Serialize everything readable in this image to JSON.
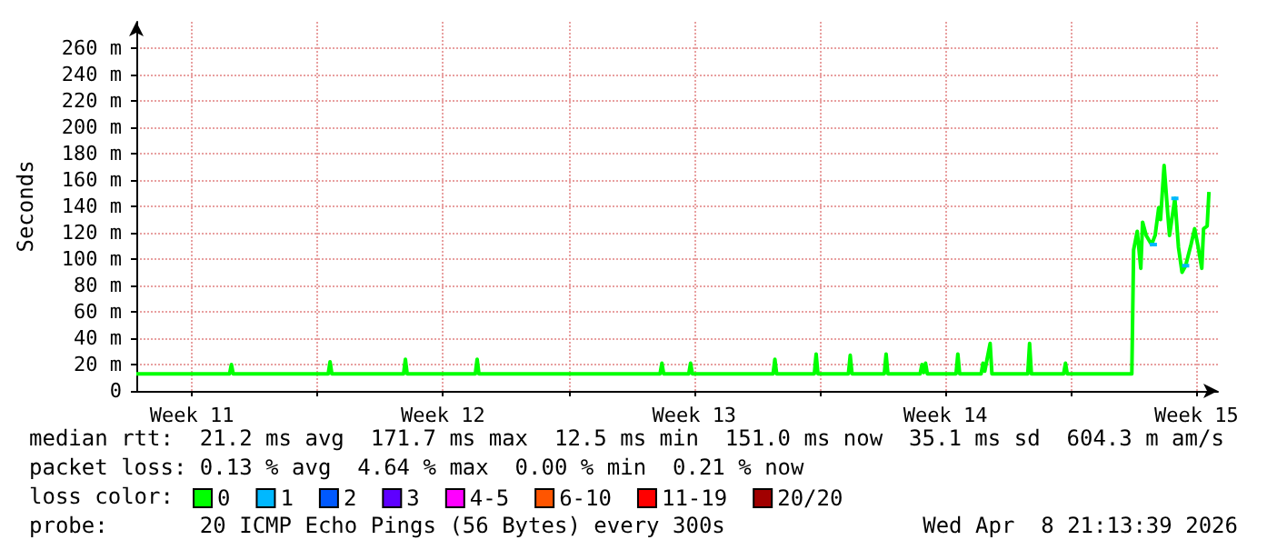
{
  "chart_data": {
    "type": "line",
    "ylabel": "Seconds",
    "xlim": [
      "2026-03-09T22:48",
      "2026-04-09T02:24"
    ],
    "xticks": [
      {
        "value": "2026-03-11T12:00",
        "label": "Week 11"
      },
      {
        "value": "2026-03-15T00:00",
        "label": null
      },
      {
        "value": "2026-03-18T12:00",
        "label": "Week 12"
      },
      {
        "value": "2026-03-22T00:00",
        "label": null
      },
      {
        "value": "2026-03-25T12:00",
        "label": "Week 13"
      },
      {
        "value": "2026-03-29T00:00",
        "label": null
      },
      {
        "value": "2026-04-01T12:00",
        "label": "Week 14"
      },
      {
        "value": "2026-04-05T00:00",
        "label": null
      },
      {
        "value": "2026-04-08T12:00",
        "label": "Week 15"
      }
    ],
    "ylim": [
      0,
      280
    ],
    "yticks": [
      0,
      {
        "value": 20,
        "label": "20 m"
      },
      {
        "value": 40,
        "label": "40 m"
      },
      {
        "value": 60,
        "label": "60 m"
      },
      {
        "value": 80,
        "label": "80 m"
      },
      {
        "value": 100,
        "label": "100 m"
      },
      {
        "value": 120,
        "label": "120 m"
      },
      {
        "value": 140,
        "label": "140 m"
      },
      {
        "value": 160,
        "label": "160 m"
      },
      {
        "value": 180,
        "label": "180 m"
      },
      {
        "value": 200,
        "label": "200 m"
      },
      {
        "value": 220,
        "label": "220 m"
      },
      {
        "value": 240,
        "label": "240 m"
      },
      {
        "value": 260,
        "label": "260 m"
      }
    ],
    "grid": true,
    "legend": "bottom",
    "marker": "none",
    "line_style": "solid",
    "series": [
      {
        "name": "0",
        "color": "#00ff00",
        "x": [
          "2026-03-09T22:48",
          "2026-03-12T13:12",
          "2026-03-12T14:24",
          "2026-03-12T15:36",
          "2026-03-15T07:12",
          "2026-03-15T08:24",
          "2026-03-15T09:36",
          "2026-03-17T09:36",
          "2026-03-17T10:48",
          "2026-03-17T12:00",
          "2026-03-19T09:36",
          "2026-03-19T10:48",
          "2026-03-19T12:00",
          "2026-03-24T13:12",
          "2026-03-24T14:24",
          "2026-03-24T15:36",
          "2026-03-25T08:24",
          "2026-03-25T09:36",
          "2026-03-25T10:48",
          "2026-03-27T16:48",
          "2026-03-27T18:00",
          "2026-03-27T19:12",
          "2026-03-28T20:24",
          "2026-03-28T21:36",
          "2026-03-28T22:48",
          "2026-03-29T19:12",
          "2026-03-29T20:24",
          "2026-03-29T21:36",
          "2026-03-30T19:12",
          "2026-03-30T20:24",
          "2026-03-30T21:36",
          "2026-03-31T19:12",
          "2026-03-31T20:24",
          "2026-03-31T21:36",
          "2026-03-31T22:48",
          "2026-04-01T00:00",
          "2026-04-01T19:12",
          "2026-04-01T20:24",
          "2026-04-01T21:36",
          "2026-04-02T12:00",
          "2026-04-02T13:12",
          "2026-04-02T14:24",
          "2026-04-02T18:00",
          "2026-04-02T19:12",
          "2026-04-03T19:12",
          "2026-04-03T20:24",
          "2026-04-03T21:36",
          "2026-04-04T19:12",
          "2026-04-04T20:24",
          "2026-04-04T21:36",
          "2026-04-06T16:48",
          "2026-04-06T18:00",
          "2026-04-06T20:24",
          "2026-04-06T22:48",
          "2026-04-07T00:00",
          "2026-04-07T02:24",
          "2026-04-07T06:00",
          "2026-04-07T08:24",
          "2026-04-07T10:48",
          "2026-04-07T12:00",
          "2026-04-07T14:24",
          "2026-04-07T16:48",
          "2026-04-07T18:00",
          "2026-04-07T21:36",
          "2026-04-08T00:00",
          "2026-04-08T02:24",
          "2026-04-08T04:48",
          "2026-04-08T08:24",
          "2026-04-08T10:48",
          "2026-04-08T13:12",
          "2026-04-08T15:36",
          "2026-04-08T16:48",
          "2026-04-08T19:12",
          "2026-04-08T20:24"
        ],
        "values": [
          13,
          13,
          20,
          13,
          13,
          22,
          13,
          13,
          24,
          13,
          13,
          24,
          13,
          13,
          21,
          13,
          13,
          21,
          13,
          13,
          24,
          13,
          13,
          28,
          13,
          13,
          27,
          13,
          13,
          28,
          13,
          13,
          20,
          14,
          21,
          13,
          13,
          28,
          13,
          13,
          21,
          15,
          36,
          13,
          13,
          36,
          13,
          13,
          21,
          13,
          13,
          107,
          121,
          93,
          128,
          118,
          111,
          118,
          139,
          130,
          171,
          135,
          118,
          146,
          109,
          90,
          95,
          111,
          123,
          109,
          93,
          123,
          125,
          151
        ]
      },
      {
        "name": "1",
        "color": "#00b8ff",
        "x": [
          "2026-04-07T04:48",
          "2026-04-07T09:36",
          "2026-04-07T12:00",
          "2026-04-07T19:12",
          "2026-04-08T00:00",
          "2026-04-08T01:12",
          "2026-04-08T02:24",
          "2026-04-08T07:12"
        ],
        "values": [
          111,
          111,
          null,
          146,
          146,
          null,
          95,
          95
        ]
      },
      {
        "name": "2",
        "color": "#0059ff"
      },
      {
        "name": "3",
        "color": "#5e00ff"
      },
      {
        "name": "4-5",
        "color": "#ff00ff"
      },
      {
        "name": "6-10",
        "color": "#ff5500"
      },
      {
        "name": "11-19",
        "color": "#ff0000"
      },
      {
        "name": "20/20",
        "color": "#a10000"
      }
    ],
    "annotations": [
      "median rtt:  21.2 ms avg  171.7 ms max  12.5 ms min  151.0 ms now  35.1 ms sd  604.3 m am/s",
      "packet loss: 0.13 % avg  4.64 % max  0.00 % min  0.21 % now",
      "loss color:",
      "probe:       20 ICMP Echo Pings (56 Bytes) every 300s",
      "Wed Apr  8 21:13:39 2026"
    ]
  }
}
